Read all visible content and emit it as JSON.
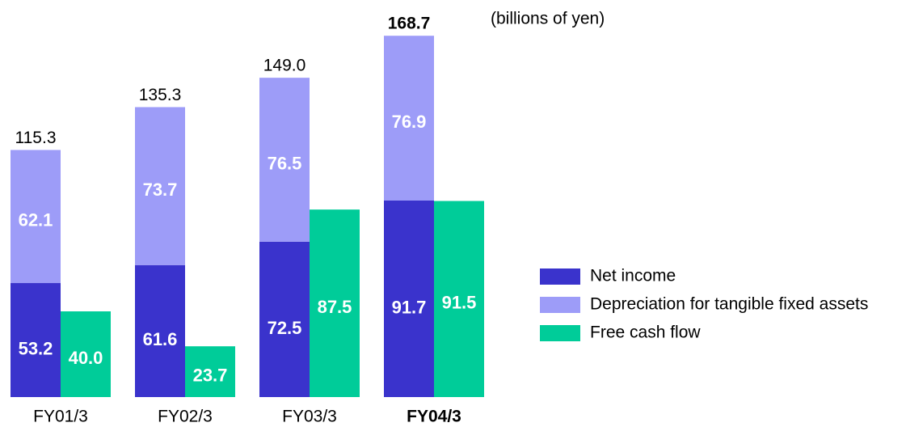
{
  "chart_data": {
    "type": "bar",
    "unit_note": "(billions of yen)",
    "categories": [
      "FY01/3",
      "FY02/3",
      "FY03/3",
      "FY04/3"
    ],
    "stacked_series": [
      {
        "name": "Net income",
        "color": "#3a33cc",
        "values": [
          53.2,
          61.6,
          72.5,
          91.7
        ]
      },
      {
        "name": "Depreciation for tangible fixed assets",
        "color": "#9d9cf8",
        "values": [
          62.1,
          73.7,
          76.5,
          76.9
        ]
      }
    ],
    "series": [
      {
        "name": "Free cash flow",
        "color": "#00cc99",
        "values": [
          40,
          23.7,
          87.5,
          91.5
        ],
        "value_labels": [
          "40.0",
          "23.7",
          "87.5",
          "91.5"
        ]
      }
    ],
    "totals": {
      "values": [
        115.3,
        135.3,
        149,
        168.7
      ],
      "value_labels": [
        "115.3",
        "135.3",
        "149.0",
        "168.7"
      ]
    },
    "bold_index": 3,
    "ylim": [
      0,
      180
    ]
  }
}
